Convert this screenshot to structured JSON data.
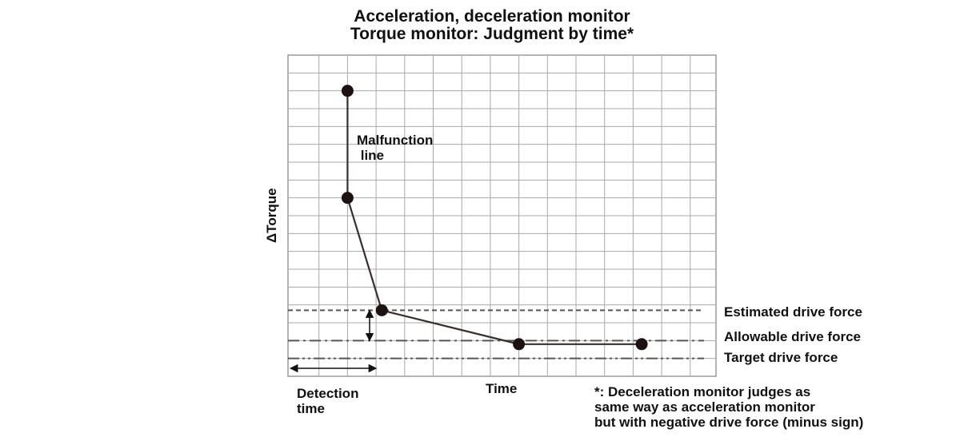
{
  "chart_data": {
    "type": "line",
    "title": "Acceleration, deceleration monitor",
    "subtitle": "Torque monitor: Judgment by time*",
    "xlabel": "Time",
    "ylabel": "ΔTorque",
    "grid": true,
    "xlim": [
      0,
      15
    ],
    "ylim": [
      0,
      18
    ],
    "series": [
      {
        "name": "Malfunction line",
        "points": [
          {
            "x": 2.0,
            "y": 16.0
          },
          {
            "x": 2.0,
            "y": 10.0
          },
          {
            "x": 3.2,
            "y": 3.7
          },
          {
            "x": 8.0,
            "y": 1.8
          },
          {
            "x": 12.3,
            "y": 1.8
          }
        ]
      }
    ],
    "reference_lines": [
      {
        "name": "Estimated drive force",
        "y": 3.7,
        "style": "dashed"
      },
      {
        "name": "Allowable drive force",
        "y": 2.0,
        "style": "dash-dot"
      },
      {
        "name": "Target drive force",
        "y": 1.0,
        "style": "dash-dot-dot"
      }
    ],
    "annotations": {
      "malfunction_line_label": "Malfunction\n line",
      "detection_time_label": "Detection\ntime",
      "detection_time_span": [
        0,
        3.0
      ],
      "delta_span": [
        2.0,
        3.7
      ],
      "footnote": "*: Deceleration monitor judges as\nsame way as acceleration monitor\nbut with negative drive force (minus sign)"
    }
  }
}
